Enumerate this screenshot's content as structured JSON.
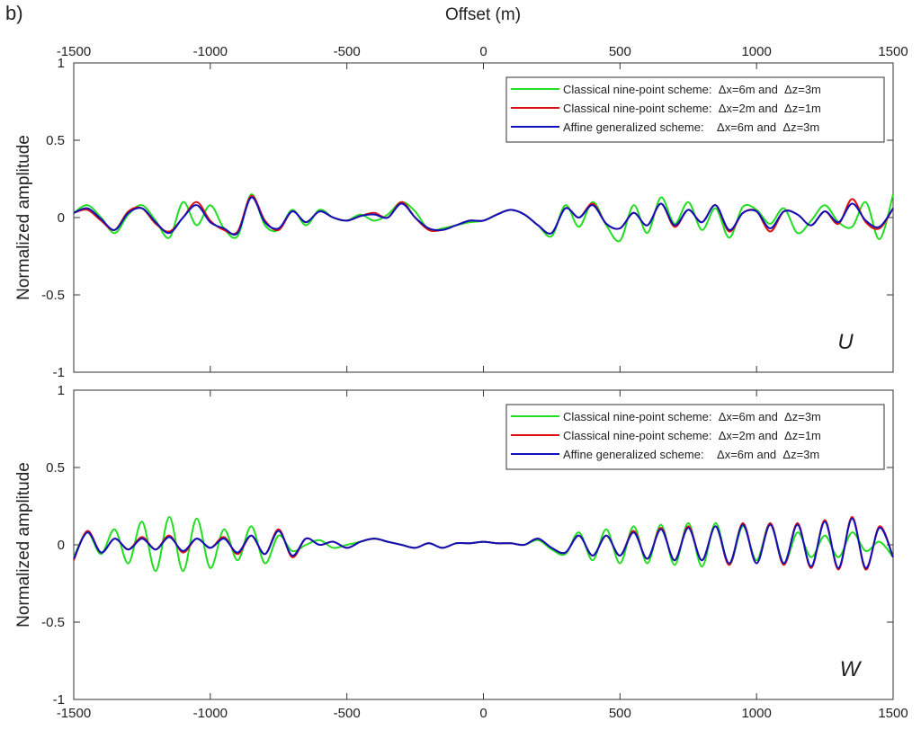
{
  "figure_label": "b)",
  "colors": {
    "green": "#22dd22",
    "red": "#dd1111",
    "blue": "#1111bb"
  },
  "chart_data": [
    {
      "type": "line",
      "component": "U",
      "title": "",
      "xlabel": "Offset (m)",
      "ylabel": "Normalized amplitude",
      "xlim": [
        -1500,
        1500
      ],
      "ylim": [
        -1,
        1
      ],
      "xticks": [
        -1500,
        -1000,
        -500,
        0,
        500,
        1000,
        1500
      ],
      "xtick_labels": [
        "-1500",
        "-1000",
        "-500",
        "0",
        "500",
        "1000",
        "1500"
      ],
      "yticks": [
        -1,
        -0.5,
        0,
        0.5,
        1
      ],
      "ytick_labels": [
        "-1",
        "-0.5",
        "0",
        "0.5",
        "1"
      ],
      "legend_position": "top-right",
      "grid": false,
      "x": [
        -1500,
        -1450,
        -1400,
        -1350,
        -1300,
        -1250,
        -1200,
        -1150,
        -1100,
        -1050,
        -1000,
        -950,
        -900,
        -850,
        -800,
        -750,
        -700,
        -650,
        -600,
        -550,
        -500,
        -450,
        -400,
        -350,
        -300,
        -250,
        -200,
        -150,
        -100,
        -50,
        0,
        50,
        100,
        150,
        200,
        250,
        300,
        350,
        400,
        450,
        500,
        550,
        600,
        650,
        700,
        750,
        800,
        850,
        900,
        950,
        1000,
        1050,
        1100,
        1150,
        1200,
        1250,
        1300,
        1350,
        1400,
        1450,
        1500
      ],
      "series": [
        {
          "name": "Classical nine-point scheme:  Δx=6m and  Δz=3m",
          "color": "#22dd22",
          "values": [
            0.03,
            0.08,
            0.0,
            -0.1,
            0.02,
            0.08,
            -0.02,
            -0.13,
            0.1,
            -0.05,
            0.08,
            -0.07,
            -0.12,
            0.15,
            -0.05,
            -0.08,
            0.05,
            -0.05,
            0.05,
            0.0,
            -0.02,
            0.02,
            -0.02,
            0.02,
            0.1,
            0.04,
            -0.08,
            -0.07,
            -0.05,
            -0.03,
            -0.02,
            0.02,
            0.05,
            0.02,
            -0.05,
            -0.12,
            0.08,
            -0.06,
            0.1,
            -0.05,
            -0.15,
            0.08,
            -0.1,
            0.13,
            -0.04,
            0.1,
            -0.08,
            0.06,
            -0.13,
            0.07,
            0.05,
            -0.04,
            0.06,
            -0.1,
            -0.02,
            0.08,
            -0.03,
            -0.06,
            0.1,
            -0.14,
            0.15
          ]
        },
        {
          "name": "Classical nine-point scheme:  Δx=2m and  Δz=1m",
          "color": "#dd1111",
          "values": [
            0.03,
            0.05,
            -0.02,
            -0.08,
            0.04,
            0.06,
            -0.04,
            -0.09,
            0.0,
            0.1,
            -0.02,
            -0.08,
            -0.09,
            0.14,
            -0.02,
            -0.08,
            0.04,
            -0.03,
            0.04,
            0.0,
            -0.02,
            0.01,
            0.03,
            0.0,
            0.1,
            0.0,
            -0.08,
            -0.08,
            -0.05,
            -0.02,
            -0.02,
            0.02,
            0.05,
            0.02,
            -0.05,
            -0.1,
            0.06,
            0.0,
            0.09,
            -0.04,
            -0.07,
            0.03,
            -0.05,
            0.09,
            -0.06,
            0.05,
            -0.03,
            0.08,
            -0.09,
            0.03,
            0.04,
            -0.09,
            0.04,
            0.02,
            -0.05,
            0.04,
            -0.04,
            0.12,
            -0.03,
            -0.07,
            0.06
          ]
        },
        {
          "name": "Affine generalized scheme:    Δx=6m and  Δz=3m",
          "color": "#1111bb",
          "values": [
            0.03,
            0.06,
            -0.01,
            -0.08,
            0.03,
            0.06,
            -0.03,
            -0.1,
            0.0,
            0.08,
            -0.03,
            -0.07,
            -0.1,
            0.13,
            -0.03,
            -0.07,
            0.04,
            -0.03,
            0.04,
            0.0,
            -0.02,
            0.01,
            0.02,
            0.0,
            0.09,
            0.0,
            -0.07,
            -0.08,
            -0.05,
            -0.02,
            -0.02,
            0.02,
            0.05,
            0.02,
            -0.05,
            -0.1,
            0.06,
            0.0,
            0.08,
            -0.04,
            -0.07,
            0.03,
            -0.05,
            0.09,
            -0.05,
            0.05,
            -0.03,
            0.08,
            -0.08,
            0.03,
            0.04,
            -0.07,
            0.04,
            0.02,
            -0.05,
            0.04,
            -0.03,
            0.09,
            -0.02,
            -0.06,
            0.06
          ]
        }
      ]
    },
    {
      "type": "line",
      "component": "W",
      "title": "",
      "xlabel": "",
      "ylabel": "Normalized amplitude",
      "xlim": [
        -1500,
        1500
      ],
      "ylim": [
        -1,
        1
      ],
      "xticks": [
        -1500,
        -1000,
        -500,
        0,
        500,
        1000,
        1500
      ],
      "xtick_labels": [
        "-1500",
        "-1000",
        "-500",
        "0",
        "500",
        "1000",
        "1500"
      ],
      "yticks": [
        -1,
        -0.5,
        0,
        0.5,
        1
      ],
      "ytick_labels": [
        "-1",
        "-0.5",
        "0",
        "0.5",
        "1"
      ],
      "legend_position": "top-right",
      "grid": false,
      "x": [
        -1500,
        -1450,
        -1400,
        -1350,
        -1300,
        -1250,
        -1200,
        -1150,
        -1100,
        -1050,
        -1000,
        -950,
        -900,
        -850,
        -800,
        -750,
        -700,
        -650,
        -600,
        -550,
        -500,
        -450,
        -400,
        -350,
        -300,
        -250,
        -200,
        -150,
        -100,
        -50,
        0,
        50,
        100,
        150,
        200,
        250,
        300,
        350,
        400,
        450,
        500,
        550,
        600,
        650,
        700,
        750,
        800,
        850,
        900,
        950,
        1000,
        1050,
        1100,
        1150,
        1200,
        1250,
        1300,
        1350,
        1400,
        1450,
        1500
      ],
      "series": [
        {
          "name": "Classical nine-point scheme:  Δx=6m and  Δz=3m",
          "color": "#22dd22",
          "values": [
            -0.08,
            0.08,
            -0.06,
            0.1,
            -0.12,
            0.15,
            -0.17,
            0.18,
            -0.17,
            0.17,
            -0.15,
            0.1,
            -0.1,
            0.12,
            -0.12,
            0.06,
            -0.04,
            0.0,
            0.03,
            -0.02,
            0.0,
            0.02,
            0.04,
            0.02,
            0.0,
            -0.02,
            0.01,
            -0.02,
            0.01,
            0.01,
            0.02,
            0.01,
            0.01,
            0.0,
            0.03,
            -0.03,
            -0.06,
            0.08,
            -0.1,
            0.1,
            -0.12,
            0.12,
            -0.12,
            0.13,
            -0.13,
            0.14,
            -0.14,
            0.14,
            -0.13,
            0.12,
            -0.1,
            0.14,
            -0.12,
            0.08,
            -0.08,
            0.06,
            -0.08,
            0.08,
            -0.04,
            0.02,
            -0.08
          ]
        },
        {
          "name": "Classical nine-point scheme:  Δx=2m and  Δz=1m",
          "color": "#dd1111",
          "values": [
            -0.1,
            0.09,
            -0.05,
            0.04,
            -0.03,
            0.05,
            -0.03,
            0.06,
            -0.05,
            0.04,
            -0.02,
            0.05,
            -0.06,
            0.06,
            -0.06,
            0.1,
            -0.08,
            0.04,
            0.0,
            0.02,
            -0.02,
            0.02,
            0.04,
            0.02,
            0.0,
            -0.02,
            0.01,
            -0.02,
            0.01,
            0.01,
            0.02,
            0.01,
            0.01,
            0.0,
            0.04,
            -0.02,
            -0.05,
            0.06,
            -0.07,
            0.06,
            -0.07,
            0.09,
            -0.09,
            0.11,
            -0.1,
            0.12,
            -0.1,
            0.12,
            -0.13,
            0.14,
            -0.12,
            0.14,
            -0.13,
            0.14,
            -0.15,
            0.16,
            -0.16,
            0.18,
            -0.16,
            0.12,
            -0.08
          ]
        },
        {
          "name": "Affine generalized scheme:    Δx=6m and  Δz=3m",
          "color": "#1111bb",
          "values": [
            -0.09,
            0.08,
            -0.05,
            0.04,
            -0.03,
            0.04,
            -0.03,
            0.05,
            -0.04,
            0.04,
            -0.02,
            0.04,
            -0.05,
            0.06,
            -0.06,
            0.09,
            -0.07,
            0.04,
            0.0,
            0.02,
            -0.02,
            0.02,
            0.04,
            0.02,
            0.0,
            -0.02,
            0.01,
            -0.02,
            0.01,
            0.01,
            0.02,
            0.01,
            0.01,
            0.0,
            0.04,
            -0.02,
            -0.05,
            0.06,
            -0.07,
            0.06,
            -0.07,
            0.08,
            -0.09,
            0.1,
            -0.1,
            0.11,
            -0.1,
            0.12,
            -0.12,
            0.13,
            -0.12,
            0.13,
            -0.12,
            0.13,
            -0.14,
            0.15,
            -0.15,
            0.17,
            -0.15,
            0.11,
            -0.08
          ]
        }
      ]
    }
  ]
}
